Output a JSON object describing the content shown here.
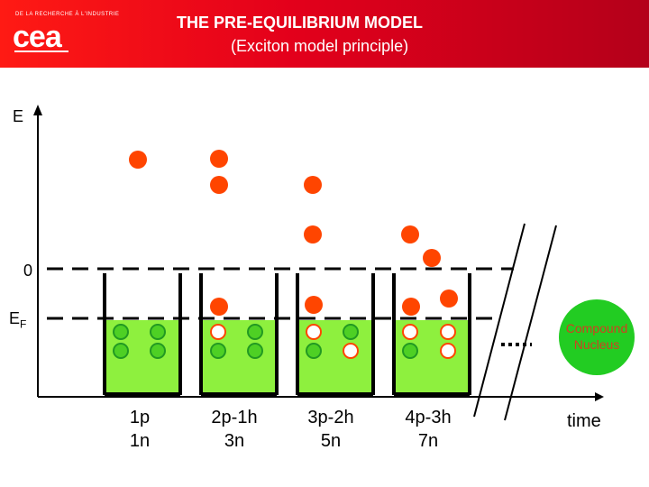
{
  "header": {
    "logo_small_text": "DE LA RECHERCHE À L'INDUSTRIE",
    "logo_text": "cea",
    "title": "THE PRE-EQUILIBRIUM MODEL",
    "subtitle": "(Exciton model principle)"
  },
  "axis": {
    "y_label": "E",
    "zero_label": "0",
    "fermi_label": "E",
    "fermi_subscript": "F",
    "x_label": "time"
  },
  "stages": [
    {
      "line1": "1p",
      "line2": "1n"
    },
    {
      "line1": "2p-1h",
      "line2": "3n"
    },
    {
      "line1": "3p-2h",
      "line2": "5n"
    },
    {
      "line1": "4p-3h",
      "line2": "7n"
    }
  ],
  "compound": {
    "line1": "Compound",
    "line2": "Nucleus"
  },
  "colors": {
    "header_red": "#e3001b",
    "particle": "#ff4500",
    "well_fill": "#8ef03e",
    "nucleon_fill": "#4ed024",
    "nucleon_stroke": "#229922",
    "hole_stroke": "#ff4500",
    "compound_fill": "#22cc22",
    "compound_text": "#d04020"
  }
}
